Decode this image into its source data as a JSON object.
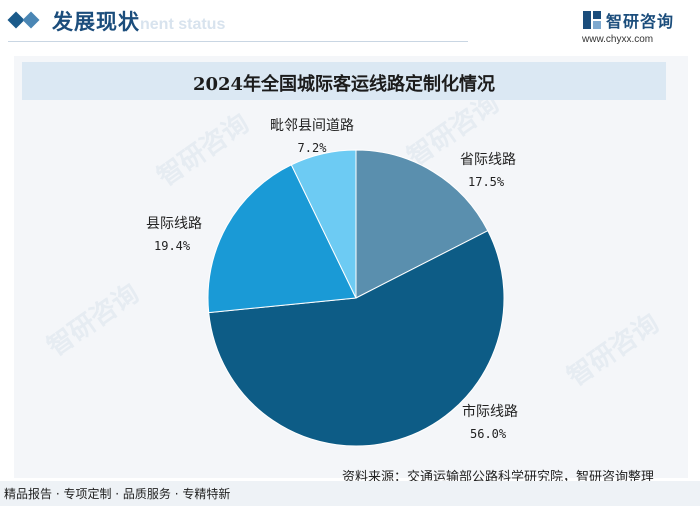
{
  "header": {
    "section_title": "发展现状",
    "section_subtitle": "nent status",
    "brand_name": "智研咨询",
    "brand_url": "www.chyxx.com"
  },
  "watermark_text": "智研咨询",
  "colors": {
    "brand": "#1b4d7c",
    "title_bar": "#dbe8f3"
  },
  "chart_data": {
    "type": "pie",
    "title": "2024年全国城际客运线路定制化情况",
    "series": [
      {
        "name": "省际线路",
        "value": 17.5,
        "label": "17.5%",
        "color": "#5a8fae"
      },
      {
        "name": "市际线路",
        "value": 56.0,
        "label": "56.0%",
        "color": "#0d5c86"
      },
      {
        "name": "县际线路",
        "value": 19.4,
        "label": "19.4%",
        "color": "#1a9ad6"
      },
      {
        "name": "毗邻县间道路",
        "value": 7.2,
        "label": "7.2%",
        "color": "#6dcbf3"
      }
    ],
    "start_angle_deg": 0,
    "direction": "clockwise"
  },
  "source": "资料来源：交通运输部公路科学研究院，智研咨询整理",
  "footer": "精品报告 · 专项定制 · 品质服务 · 专精特新"
}
